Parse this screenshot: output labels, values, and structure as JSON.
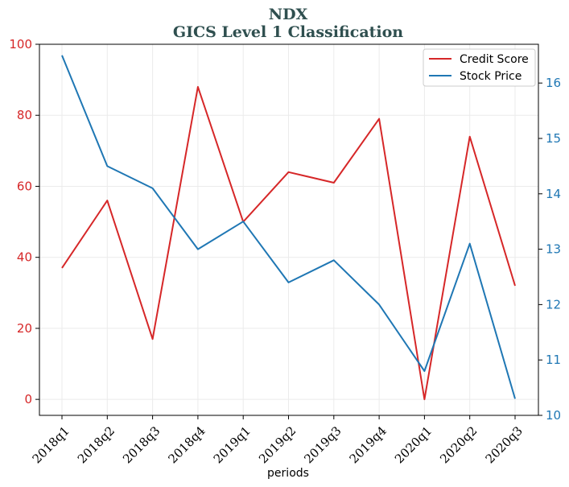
{
  "chart_data": {
    "type": "line",
    "title": "NDX",
    "subtitle": "GICS Level 1 Classification",
    "xlabel": "periods",
    "ylabel_left": "",
    "ylabel_right": "",
    "categories": [
      "2018q1",
      "2018q2",
      "2018q3",
      "2018q4",
      "2019q1",
      "2019q2",
      "2019q3",
      "2019q4",
      "2020q1",
      "2020q2",
      "2020q3"
    ],
    "ylim_left": [
      -4.5,
      100
    ],
    "ylim_right": [
      10,
      16.7
    ],
    "yticks_left": [
      0,
      20,
      40,
      60,
      80,
      100
    ],
    "yticks_right": [
      10,
      11,
      12,
      13,
      14,
      15,
      16
    ],
    "grid": true,
    "legend_position": "top-right",
    "series": [
      {
        "name": "Credit Score",
        "axis": "left",
        "color": "#d62728",
        "values": [
          37,
          56,
          17,
          88,
          50,
          64,
          61,
          79,
          0,
          74,
          32
        ]
      },
      {
        "name": "Stock Price",
        "axis": "right",
        "color": "#1f77b4",
        "values": [
          16.5,
          14.5,
          14.1,
          13.0,
          13.5,
          12.4,
          12.8,
          12.0,
          10.8,
          13.1,
          10.3
        ]
      }
    ],
    "colors": {
      "left_axis": "#d62728",
      "right_axis": "#1f77b4",
      "title": "#2f4f4f",
      "grid": "#ebebeb"
    }
  }
}
